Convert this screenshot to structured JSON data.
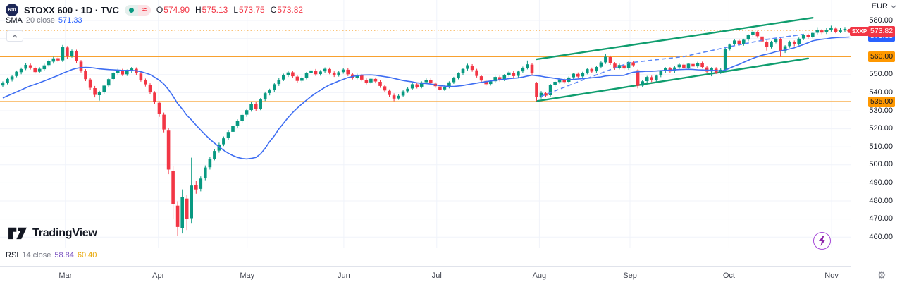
{
  "legend": {
    "symbol_short": "600",
    "title": "STOXX 600 · 1D · TVC",
    "ohlc": [
      {
        "label": "O",
        "value": "574.90"
      },
      {
        "label": "H",
        "value": "575.13"
      },
      {
        "label": "L",
        "value": "573.75"
      },
      {
        "label": "C",
        "value": "573.82"
      }
    ],
    "sma": {
      "name": "SMA",
      "params": "20 close",
      "value": "571.33"
    },
    "rsi": {
      "name": "RSI",
      "params": "14 close",
      "value1": "58.84",
      "value2": "60.40"
    }
  },
  "watermark": {
    "brand": "TradingView"
  },
  "axis": {
    "currency": "EUR",
    "price_labels": [
      580,
      570,
      550,
      540,
      530,
      520,
      510,
      500,
      490,
      480,
      470,
      460
    ]
  },
  "badges": {
    "symbol_tag": "SXXP",
    "last": {
      "text": "573.82",
      "price": 573.82
    },
    "sma": {
      "text": "571.33",
      "price": 571.33
    },
    "level1": {
      "text": "560.00",
      "price": 560
    },
    "level2": {
      "text": "535.00",
      "price": 535
    }
  },
  "chart_data": {
    "type": "candlestick",
    "title": "STOXX 600",
    "interval": "1D",
    "exchange": "TVC",
    "currency": "EUR",
    "last_close": 573.82,
    "ylim": [
      455,
      582
    ],
    "y_ticks": [
      580,
      570,
      560,
      550,
      540,
      530,
      520,
      510,
      500,
      490,
      480,
      470,
      460
    ],
    "months": [
      {
        "label": "Mar",
        "i": 13.6
      },
      {
        "label": "Apr",
        "i": 33.8
      },
      {
        "label": "May",
        "i": 53.1
      },
      {
        "label": "Jun",
        "i": 74.1
      },
      {
        "label": "Jul",
        "i": 94.3
      },
      {
        "label": "Aug",
        "i": 116.6
      },
      {
        "label": "Sep",
        "i": 136.3
      },
      {
        "label": "Oct",
        "i": 157.8
      },
      {
        "label": "Nov",
        "i": 180.1
      }
    ],
    "levels": [
      {
        "price": 560,
        "style": "solid"
      },
      {
        "price": 535,
        "style": "solid"
      },
      {
        "price": 574.6,
        "style": "dotted"
      }
    ],
    "overlays": {
      "sma": {
        "name": "SMA",
        "period": 20,
        "last": 571.33,
        "seed_closes": [
          525,
          527,
          529,
          531,
          532,
          533,
          534,
          535,
          536,
          537,
          538,
          539,
          540,
          541,
          542,
          543,
          544,
          545,
          545
        ]
      },
      "channel": {
        "upper": [
          [
            116,
            558.5
          ],
          [
            176,
            581.5
          ]
        ],
        "lower": [
          [
            116,
            535.3
          ],
          [
            175,
            559.0
          ]
        ]
      },
      "dashed_trend": {
        "points": [
          [
            117,
            538.0
          ],
          [
            126,
            547.0
          ],
          [
            136,
            556.5
          ],
          [
            148,
            560.0
          ],
          [
            158,
            565.5
          ],
          [
            166,
            569.5
          ],
          [
            174,
            572.3
          ]
        ]
      }
    },
    "colors": {
      "up": "#089981",
      "down": "#f23645",
      "sma": "#3d6df2",
      "dashed": "#5b87f7",
      "channel": "#0f9d6e",
      "level": "#f8a12f",
      "grid": "#f0f3fa",
      "badge_orange": "#ff9800",
      "badge_red": "#f23645",
      "badge_blue": "#2962ff"
    },
    "candles": [
      [
        544.0,
        546.2,
        543.1,
        545.2
      ],
      [
        545.3,
        548.4,
        544.6,
        547.6
      ],
      [
        547.4,
        549.8,
        546.2,
        549.0
      ],
      [
        549.2,
        552.3,
        548.5,
        551.6
      ],
      [
        551.4,
        553.9,
        550.2,
        553.1
      ],
      [
        553.3,
        556.4,
        552.5,
        555.4
      ],
      [
        555.2,
        556.1,
        552.8,
        553.9
      ],
      [
        553.7,
        554.4,
        550.6,
        551.4
      ],
      [
        551.6,
        554.1,
        550.8,
        553.2
      ],
      [
        553.0,
        556.0,
        552.2,
        555.1
      ],
      [
        555.3,
        558.3,
        554.4,
        557.4
      ],
      [
        557.2,
        559.9,
        556.1,
        559.0
      ],
      [
        559.1,
        560.0,
        556.9,
        557.8
      ],
      [
        557.9,
        566.4,
        557.0,
        565.2
      ],
      [
        565.0,
        565.8,
        558.9,
        560.1
      ],
      [
        560.3,
        563.9,
        559.4,
        563.2
      ],
      [
        563.0,
        563.8,
        556.3,
        557.4
      ],
      [
        557.2,
        558.1,
        551.2,
        552.3
      ],
      [
        552.1,
        553.0,
        546.4,
        547.5
      ],
      [
        547.3,
        548.2,
        541.6,
        542.7
      ],
      [
        542.5,
        543.7,
        537.4,
        538.8
      ],
      [
        538.6,
        541.0,
        535.6,
        540.2
      ],
      [
        540.3,
        544.5,
        539.4,
        543.9
      ],
      [
        544.0,
        548.1,
        543.1,
        547.5
      ],
      [
        547.6,
        551.4,
        546.7,
        550.8
      ],
      [
        550.9,
        553.3,
        550.0,
        552.5
      ],
      [
        552.4,
        553.2,
        549.2,
        550.1
      ],
      [
        550.2,
        552.8,
        549.3,
        552.0
      ],
      [
        552.1,
        554.2,
        551.0,
        553.4
      ],
      [
        553.2,
        554.0,
        549.9,
        550.8
      ],
      [
        550.6,
        551.4,
        546.1,
        547.2
      ],
      [
        547.0,
        547.8,
        543.4,
        544.6
      ],
      [
        544.4,
        545.2,
        539.1,
        540.3
      ],
      [
        540.0,
        540.8,
        533.6,
        534.8
      ],
      [
        534.4,
        535.3,
        526.6,
        528.2
      ],
      [
        527.8,
        529.0,
        518.0,
        519.6
      ],
      [
        519.0,
        520.3,
        494.8,
        497.4
      ],
      [
        496.6,
        499.5,
        470.0,
        478.3
      ],
      [
        477.4,
        479.8,
        460.5,
        465.6
      ],
      [
        464.9,
        486.4,
        462.0,
        482.0
      ],
      [
        481.3,
        483.5,
        463.9,
        470.0
      ],
      [
        470.4,
        504.0,
        467.8,
        488.5
      ],
      [
        489.0,
        491.3,
        484.0,
        486.4
      ],
      [
        486.7,
        493.6,
        485.3,
        492.4
      ],
      [
        492.6,
        499.7,
        491.5,
        498.5
      ],
      [
        498.7,
        504.2,
        497.4,
        503.3
      ],
      [
        503.4,
        508.8,
        502.5,
        507.7
      ],
      [
        507.9,
        512.3,
        506.7,
        511.3
      ],
      [
        511.4,
        515.7,
        510.4,
        514.7
      ],
      [
        514.8,
        519.2,
        513.7,
        518.2
      ],
      [
        518.3,
        522.6,
        517.3,
        521.6
      ],
      [
        521.7,
        525.2,
        520.5,
        524.2
      ],
      [
        524.3,
        528.7,
        523.4,
        527.7
      ],
      [
        527.8,
        531.2,
        526.6,
        530.3
      ],
      [
        530.4,
        534.7,
        529.5,
        533.8
      ],
      [
        533.9,
        534.7,
        529.9,
        531.0
      ],
      [
        531.1,
        537.0,
        530.3,
        536.2
      ],
      [
        536.3,
        540.6,
        535.4,
        539.7
      ],
      [
        539.8,
        542.2,
        538.5,
        541.3
      ],
      [
        541.4,
        545.5,
        540.5,
        544.7
      ],
      [
        544.8,
        548.0,
        543.7,
        547.2
      ],
      [
        547.3,
        550.5,
        546.4,
        549.8
      ],
      [
        549.9,
        552.0,
        548.7,
        551.2
      ],
      [
        551.3,
        552.0,
        548.0,
        549.1
      ],
      [
        548.9,
        549.7,
        545.5,
        546.5
      ],
      [
        546.6,
        549.0,
        545.7,
        548.2
      ],
      [
        548.3,
        551.5,
        547.4,
        550.7
      ],
      [
        550.8,
        553.1,
        549.8,
        552.3
      ],
      [
        552.2,
        553.1,
        549.3,
        550.2
      ],
      [
        550.3,
        552.5,
        549.4,
        551.7
      ],
      [
        551.8,
        554.0,
        550.9,
        553.2
      ],
      [
        553.1,
        553.9,
        550.2,
        551.2
      ],
      [
        551.0,
        551.8,
        548.7,
        549.7
      ],
      [
        549.8,
        552.1,
        548.9,
        551.3
      ],
      [
        551.4,
        553.7,
        550.5,
        552.8
      ],
      [
        552.7,
        553.5,
        549.2,
        550.2
      ],
      [
        550.1,
        550.9,
        547.3,
        548.2
      ],
      [
        548.3,
        550.5,
        547.4,
        549.7
      ],
      [
        549.6,
        550.4,
        546.3,
        547.2
      ],
      [
        547.1,
        547.9,
        544.6,
        545.6
      ],
      [
        545.7,
        548.3,
        544.8,
        547.7
      ],
      [
        547.6,
        548.4,
        545.2,
        546.2
      ],
      [
        546.0,
        546.8,
        542.7,
        543.7
      ],
      [
        543.5,
        544.3,
        540.3,
        541.2
      ],
      [
        541.0,
        541.8,
        537.8,
        538.7
      ],
      [
        538.5,
        539.6,
        535.3,
        536.7
      ],
      [
        536.8,
        539.1,
        536.0,
        538.3
      ],
      [
        538.4,
        541.3,
        537.5,
        540.7
      ],
      [
        540.8,
        543.0,
        539.9,
        542.2
      ],
      [
        542.3,
        545.3,
        541.4,
        544.7
      ],
      [
        544.6,
        545.4,
        542.3,
        543.2
      ],
      [
        543.3,
        546.3,
        542.4,
        545.7
      ],
      [
        545.8,
        547.9,
        544.9,
        547.2
      ],
      [
        547.1,
        547.9,
        544.5,
        545.2
      ],
      [
        545.0,
        545.8,
        542.7,
        543.6
      ],
      [
        543.4,
        544.2,
        540.9,
        541.7
      ],
      [
        541.8,
        544.0,
        541.0,
        543.2
      ],
      [
        543.3,
        546.3,
        542.4,
        545.7
      ],
      [
        545.8,
        548.8,
        544.9,
        548.2
      ],
      [
        548.3,
        551.3,
        547.4,
        550.7
      ],
      [
        550.8,
        553.7,
        549.9,
        553.1
      ],
      [
        553.2,
        556.0,
        552.3,
        555.2
      ],
      [
        555.0,
        555.8,
        551.6,
        552.6
      ],
      [
        552.4,
        553.2,
        548.4,
        549.3
      ],
      [
        549.1,
        549.9,
        545.9,
        546.7
      ],
      [
        546.5,
        547.3,
        543.7,
        544.7
      ],
      [
        544.8,
        547.0,
        543.9,
        546.2
      ],
      [
        546.3,
        549.3,
        545.4,
        548.7
      ],
      [
        548.6,
        549.4,
        546.2,
        547.2
      ],
      [
        547.3,
        550.3,
        546.4,
        549.7
      ],
      [
        549.8,
        552.0,
        548.9,
        551.2
      ],
      [
        551.1,
        551.9,
        548.2,
        549.2
      ],
      [
        549.3,
        552.3,
        548.4,
        551.7
      ],
      [
        551.8,
        554.4,
        550.9,
        553.7
      ],
      [
        553.8,
        557.8,
        552.9,
        555.7
      ],
      [
        555.5,
        556.3,
        549.9,
        550.9
      ],
      [
        545.4,
        545.9,
        535.4,
        537.6
      ],
      [
        537.8,
        540.9,
        536.8,
        539.9
      ],
      [
        539.7,
        540.4,
        537.6,
        538.4
      ],
      [
        538.6,
        544.8,
        537.9,
        544.1
      ],
      [
        544.2,
        546.6,
        543.3,
        546.0
      ],
      [
        545.9,
        547.9,
        545.0,
        547.3
      ],
      [
        547.4,
        548.2,
        544.9,
        545.9
      ],
      [
        546.0,
        549.0,
        545.1,
        548.4
      ],
      [
        548.5,
        551.1,
        547.6,
        550.5
      ],
      [
        550.4,
        551.2,
        547.9,
        548.9
      ],
      [
        549.0,
        551.6,
        548.1,
        551.0
      ],
      [
        551.1,
        553.6,
        550.2,
        553.0
      ],
      [
        553.1,
        553.9,
        550.8,
        551.7
      ],
      [
        551.8,
        554.8,
        550.9,
        554.2
      ],
      [
        554.3,
        557.3,
        553.4,
        556.7
      ],
      [
        556.8,
        561.4,
        555.9,
        559.9
      ],
      [
        559.7,
        560.5,
        555.4,
        556.3
      ],
      [
        556.1,
        556.9,
        552.7,
        553.7
      ],
      [
        553.8,
        556.0,
        552.9,
        555.3
      ],
      [
        555.2,
        556.0,
        552.5,
        553.4
      ],
      [
        553.5,
        557.7,
        552.6,
        557.0
      ],
      [
        556.8,
        557.6,
        554.3,
        555.2
      ],
      [
        552.4,
        552.9,
        542.4,
        543.8
      ],
      [
        543.9,
        546.9,
        543.0,
        546.3
      ],
      [
        546.4,
        549.3,
        545.5,
        548.7
      ],
      [
        548.6,
        549.4,
        545.9,
        546.8
      ],
      [
        546.9,
        550.0,
        546.0,
        549.4
      ],
      [
        549.5,
        552.5,
        548.6,
        551.9
      ],
      [
        552.0,
        554.1,
        551.1,
        553.5
      ],
      [
        553.4,
        554.2,
        550.9,
        551.8
      ],
      [
        551.9,
        554.6,
        551.0,
        554.0
      ],
      [
        554.1,
        556.2,
        553.2,
        555.6
      ],
      [
        555.5,
        556.3,
        552.8,
        553.7
      ],
      [
        553.8,
        556.5,
        552.9,
        556.0
      ],
      [
        555.9,
        556.7,
        553.6,
        554.5
      ],
      [
        554.6,
        557.1,
        553.7,
        556.5
      ],
      [
        556.4,
        557.2,
        553.4,
        554.2
      ],
      [
        554.0,
        554.8,
        550.9,
        551.7
      ],
      [
        551.8,
        554.1,
        549.1,
        553.5
      ],
      [
        553.3,
        554.1,
        550.4,
        551.2
      ],
      [
        551.3,
        553.6,
        550.4,
        552.7
      ],
      [
        552.4,
        564.9,
        551.4,
        564.2
      ],
      [
        564.3,
        567.2,
        563.4,
        566.6
      ],
      [
        566.7,
        569.5,
        565.8,
        568.9
      ],
      [
        568.8,
        569.6,
        565.9,
        566.8
      ],
      [
        566.9,
        569.9,
        566.0,
        569.3
      ],
      [
        569.4,
        572.4,
        568.5,
        571.8
      ],
      [
        571.9,
        574.6,
        571.0,
        573.8
      ],
      [
        573.6,
        574.3,
        570.4,
        571.3
      ],
      [
        571.1,
        571.9,
        567.5,
        568.4
      ],
      [
        568.2,
        568.9,
        563.3,
        565.3
      ],
      [
        565.4,
        568.7,
        564.5,
        568.1
      ],
      [
        568.2,
        570.4,
        567.3,
        569.8
      ],
      [
        569.6,
        570.3,
        559.9,
        562.8
      ],
      [
        562.9,
        566.3,
        562.0,
        565.7
      ],
      [
        565.8,
        568.8,
        564.9,
        568.2
      ],
      [
        568.1,
        568.9,
        565.7,
        567.0
      ],
      [
        567.1,
        570.5,
        566.2,
        569.9
      ],
      [
        570.0,
        572.6,
        569.1,
        572.0
      ],
      [
        571.9,
        572.7,
        569.9,
        570.9
      ],
      [
        571.0,
        573.6,
        570.1,
        573.1
      ],
      [
        573.2,
        576.3,
        572.3,
        574.7
      ],
      [
        574.5,
        575.3,
        572.4,
        573.3
      ],
      [
        573.4,
        575.7,
        572.5,
        574.6
      ],
      [
        574.7,
        577.1,
        573.8,
        575.7
      ],
      [
        575.5,
        576.3,
        572.9,
        573.6
      ],
      [
        573.7,
        576.0,
        573.0,
        574.5
      ],
      [
        574.6,
        576.4,
        573.7,
        575.3
      ],
      [
        574.9,
        575.13,
        573.75,
        573.82
      ]
    ]
  }
}
